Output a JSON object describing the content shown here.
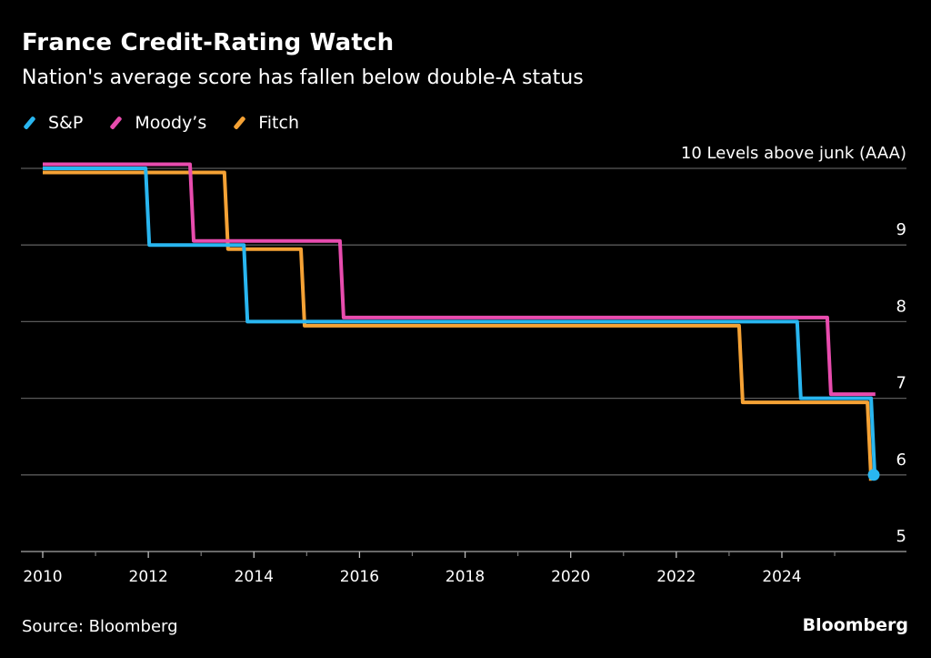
{
  "header": {
    "title": "France Credit-Rating Watch",
    "subtitle": "Nation's average score has fallen below double-A status"
  },
  "footer": {
    "source": "Source: Bloomberg",
    "logo": "Bloomberg"
  },
  "chart_data": {
    "type": "line",
    "step": true,
    "title": "France Credit-Rating Watch",
    "subtitle": "Nation's average score has fallen below double-A status",
    "xlabel": "",
    "ylabel": "Levels above junk",
    "y_top_label": "10 Levels above junk (AAA)",
    "xlim": [
      2009.98,
      2026.2
    ],
    "ylim": [
      5,
      10
    ],
    "x_ticks": [
      2010,
      2012,
      2014,
      2016,
      2018,
      2020,
      2022,
      2024
    ],
    "x_tick_labels": [
      "2010",
      "2012",
      "2014",
      "2016",
      "2018",
      "2020",
      "2022",
      "2024"
    ],
    "x_minor_ticks": [
      2011,
      2013,
      2015,
      2017,
      2019,
      2021,
      2023,
      2025
    ],
    "y_ticks": [
      10,
      9,
      8,
      7,
      6,
      5
    ],
    "y_tick_labels": [
      "10 Levels above junk (AAA)",
      "9",
      "8",
      "7",
      "6",
      "5"
    ],
    "grid": true,
    "legend": "top-left",
    "series": [
      {
        "name": "S&P",
        "color": "#29b6f0",
        "end_marker": true,
        "points": [
          [
            2010.0,
            10
          ],
          [
            2011.95,
            10
          ],
          [
            2011.95,
            9
          ],
          [
            2013.81,
            9
          ],
          [
            2013.81,
            8
          ],
          [
            2024.29,
            8
          ],
          [
            2024.29,
            7
          ],
          [
            2025.69,
            7
          ],
          [
            2025.69,
            6
          ],
          [
            2025.74,
            6
          ]
        ]
      },
      {
        "name": "Moody’s",
        "color": "#e84cae",
        "end_marker": false,
        "points": [
          [
            2010.0,
            10
          ],
          [
            2012.79,
            10
          ],
          [
            2012.79,
            9
          ],
          [
            2015.63,
            9
          ],
          [
            2015.63,
            8
          ],
          [
            2024.86,
            8
          ],
          [
            2024.86,
            7
          ],
          [
            2025.77,
            7
          ]
        ]
      },
      {
        "name": "Fitch",
        "color": "#f5a235",
        "end_marker": false,
        "points": [
          [
            2010.0,
            10
          ],
          [
            2013.44,
            10
          ],
          [
            2013.44,
            9
          ],
          [
            2014.89,
            9
          ],
          [
            2014.89,
            8
          ],
          [
            2023.19,
            8
          ],
          [
            2023.19,
            7
          ],
          [
            2025.62,
            7
          ],
          [
            2025.62,
            6
          ],
          [
            2025.65,
            6
          ]
        ]
      }
    ]
  }
}
